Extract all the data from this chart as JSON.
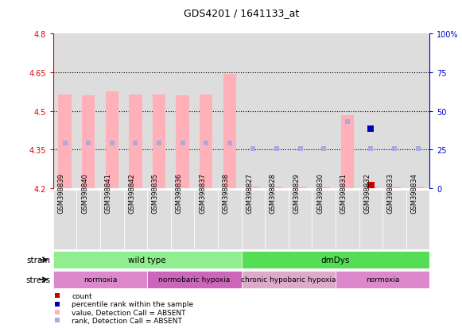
{
  "title": "GDS4201 / 1641133_at",
  "samples": [
    "GSM398839",
    "GSM398840",
    "GSM398841",
    "GSM398842",
    "GSM398835",
    "GSM398836",
    "GSM398837",
    "GSM398838",
    "GSM398827",
    "GSM398828",
    "GSM398829",
    "GSM398830",
    "GSM398831",
    "GSM398832",
    "GSM398833",
    "GSM398834"
  ],
  "bar_values": [
    4.565,
    4.56,
    4.575,
    4.565,
    4.565,
    4.56,
    4.565,
    4.645,
    4.205,
    4.205,
    4.205,
    4.205,
    4.485,
    4.205,
    4.205,
    4.205
  ],
  "bar_base": 4.2,
  "rank_values": [
    4.375,
    4.375,
    4.375,
    4.375,
    4.375,
    4.375,
    4.375,
    4.375,
    4.355,
    4.355,
    4.355,
    4.355,
    4.46,
    4.355,
    4.355,
    4.355
  ],
  "count_values": [
    null,
    null,
    null,
    null,
    null,
    null,
    null,
    null,
    null,
    null,
    null,
    null,
    null,
    4.225,
    null,
    null
  ],
  "percentile_values": [
    null,
    null,
    null,
    null,
    null,
    null,
    null,
    null,
    null,
    null,
    null,
    null,
    null,
    4.43,
    null,
    null
  ],
  "bar_color": "#ffb0b8",
  "rank_color": "#aaaadd",
  "count_color": "#cc0000",
  "percentile_color": "#0000bb",
  "ylim_left": [
    4.2,
    4.8
  ],
  "ylim_right": [
    0,
    100
  ],
  "yticks_left": [
    4.2,
    4.35,
    4.5,
    4.65,
    4.8
  ],
  "ytick_labels_left": [
    "4.2",
    "4.35",
    "4.5",
    "4.65",
    "4.8"
  ],
  "yticks_right": [
    0,
    25,
    50,
    75,
    100
  ],
  "ytick_labels_right": [
    "0",
    "25",
    "50",
    "75",
    "100%"
  ],
  "hlines": [
    4.35,
    4.5,
    4.65
  ],
  "strain_labels": [
    {
      "label": "wild type",
      "start": 0,
      "end": 8,
      "color": "#90ee90"
    },
    {
      "label": "dmDys",
      "start": 8,
      "end": 16,
      "color": "#55dd55"
    }
  ],
  "stress_labels": [
    {
      "label": "normoxia",
      "start": 0,
      "end": 4,
      "color": "#dd88cc"
    },
    {
      "label": "normobaric hypoxia",
      "start": 4,
      "end": 8,
      "color": "#cc66bb"
    },
    {
      "label": "chronic hypobaric hypoxia",
      "start": 8,
      "end": 12,
      "color": "#ddaacc"
    },
    {
      "label": "normoxia",
      "start": 12,
      "end": 16,
      "color": "#dd88cc"
    }
  ],
  "left_tick_color": "#dd0000",
  "right_tick_color": "#0000cc",
  "sample_col_color": "#dddddd",
  "plot_bg_color": "#ffffff"
}
